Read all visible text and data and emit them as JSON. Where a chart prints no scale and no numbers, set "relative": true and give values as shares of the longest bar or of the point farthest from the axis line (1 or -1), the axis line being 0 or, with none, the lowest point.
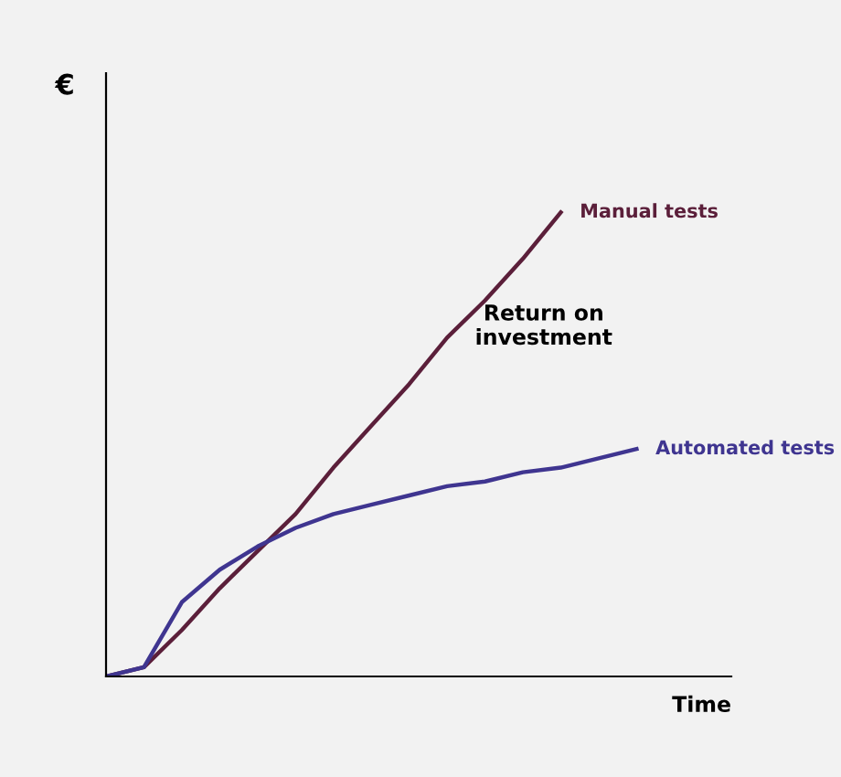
{
  "chart_data": {
    "type": "line",
    "relative": true,
    "xlabel": "Time",
    "ylabel": "€",
    "annotations": [
      "Return on\ninvestment"
    ],
    "categories": [
      null,
      null,
      null,
      null,
      null,
      null,
      null,
      null,
      null,
      null,
      null,
      null,
      null,
      null,
      null,
      null,
      null
    ],
    "marker": "none",
    "line_style": "solid",
    "legend": false,
    "grid": false,
    "series": [
      {
        "name": "Manual tests",
        "color": "#5b1f3a",
        "values": [
          0,
          0.02,
          0.1,
          0.19,
          0.27,
          0.35,
          0.45,
          0.54,
          0.63,
          0.73,
          0.81,
          0.9,
          1.0,
          null,
          null,
          null,
          null
        ]
      },
      {
        "name": "Automated tests",
        "color": "#3f3590",
        "values": [
          0,
          0.02,
          0.16,
          0.23,
          0.28,
          0.32,
          0.35,
          0.37,
          0.39,
          0.41,
          0.42,
          0.44,
          0.45,
          0.47,
          0.49,
          null,
          null
        ]
      }
    ]
  }
}
